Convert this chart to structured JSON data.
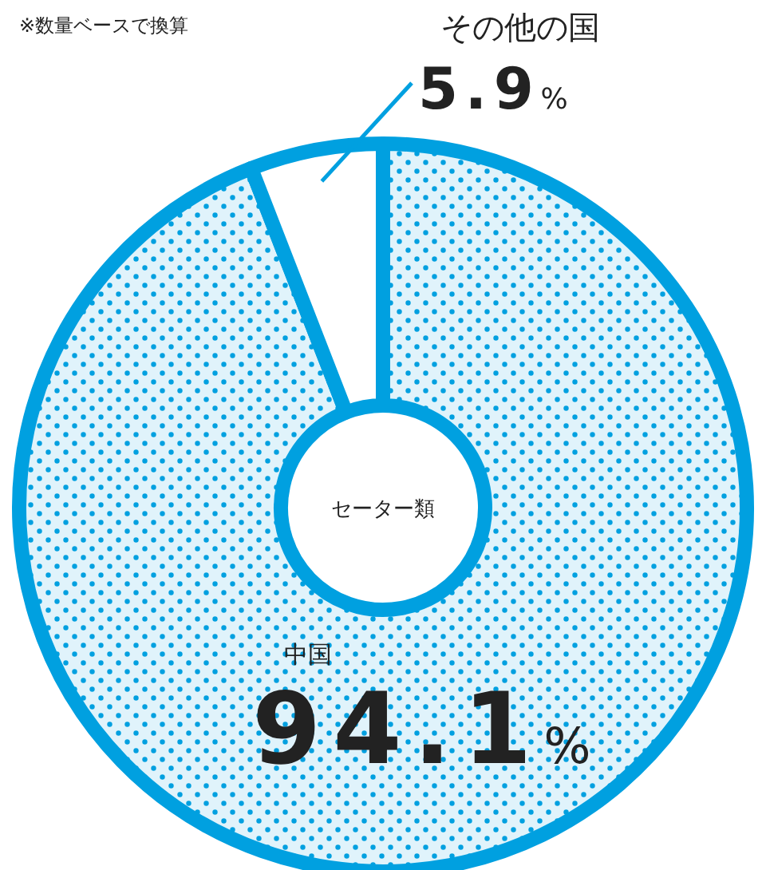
{
  "chart_data": {
    "type": "donut",
    "title": "セーター類",
    "categories": [
      "中国",
      "その他の国"
    ],
    "values": [
      94.1,
      5.9
    ],
    "colors": [
      "#00a0e0",
      "#ffffff"
    ],
    "value_labels": [
      "94.1%",
      "5.9%"
    ],
    "annotations": [
      "※数量ベースで換算"
    ]
  }
}
